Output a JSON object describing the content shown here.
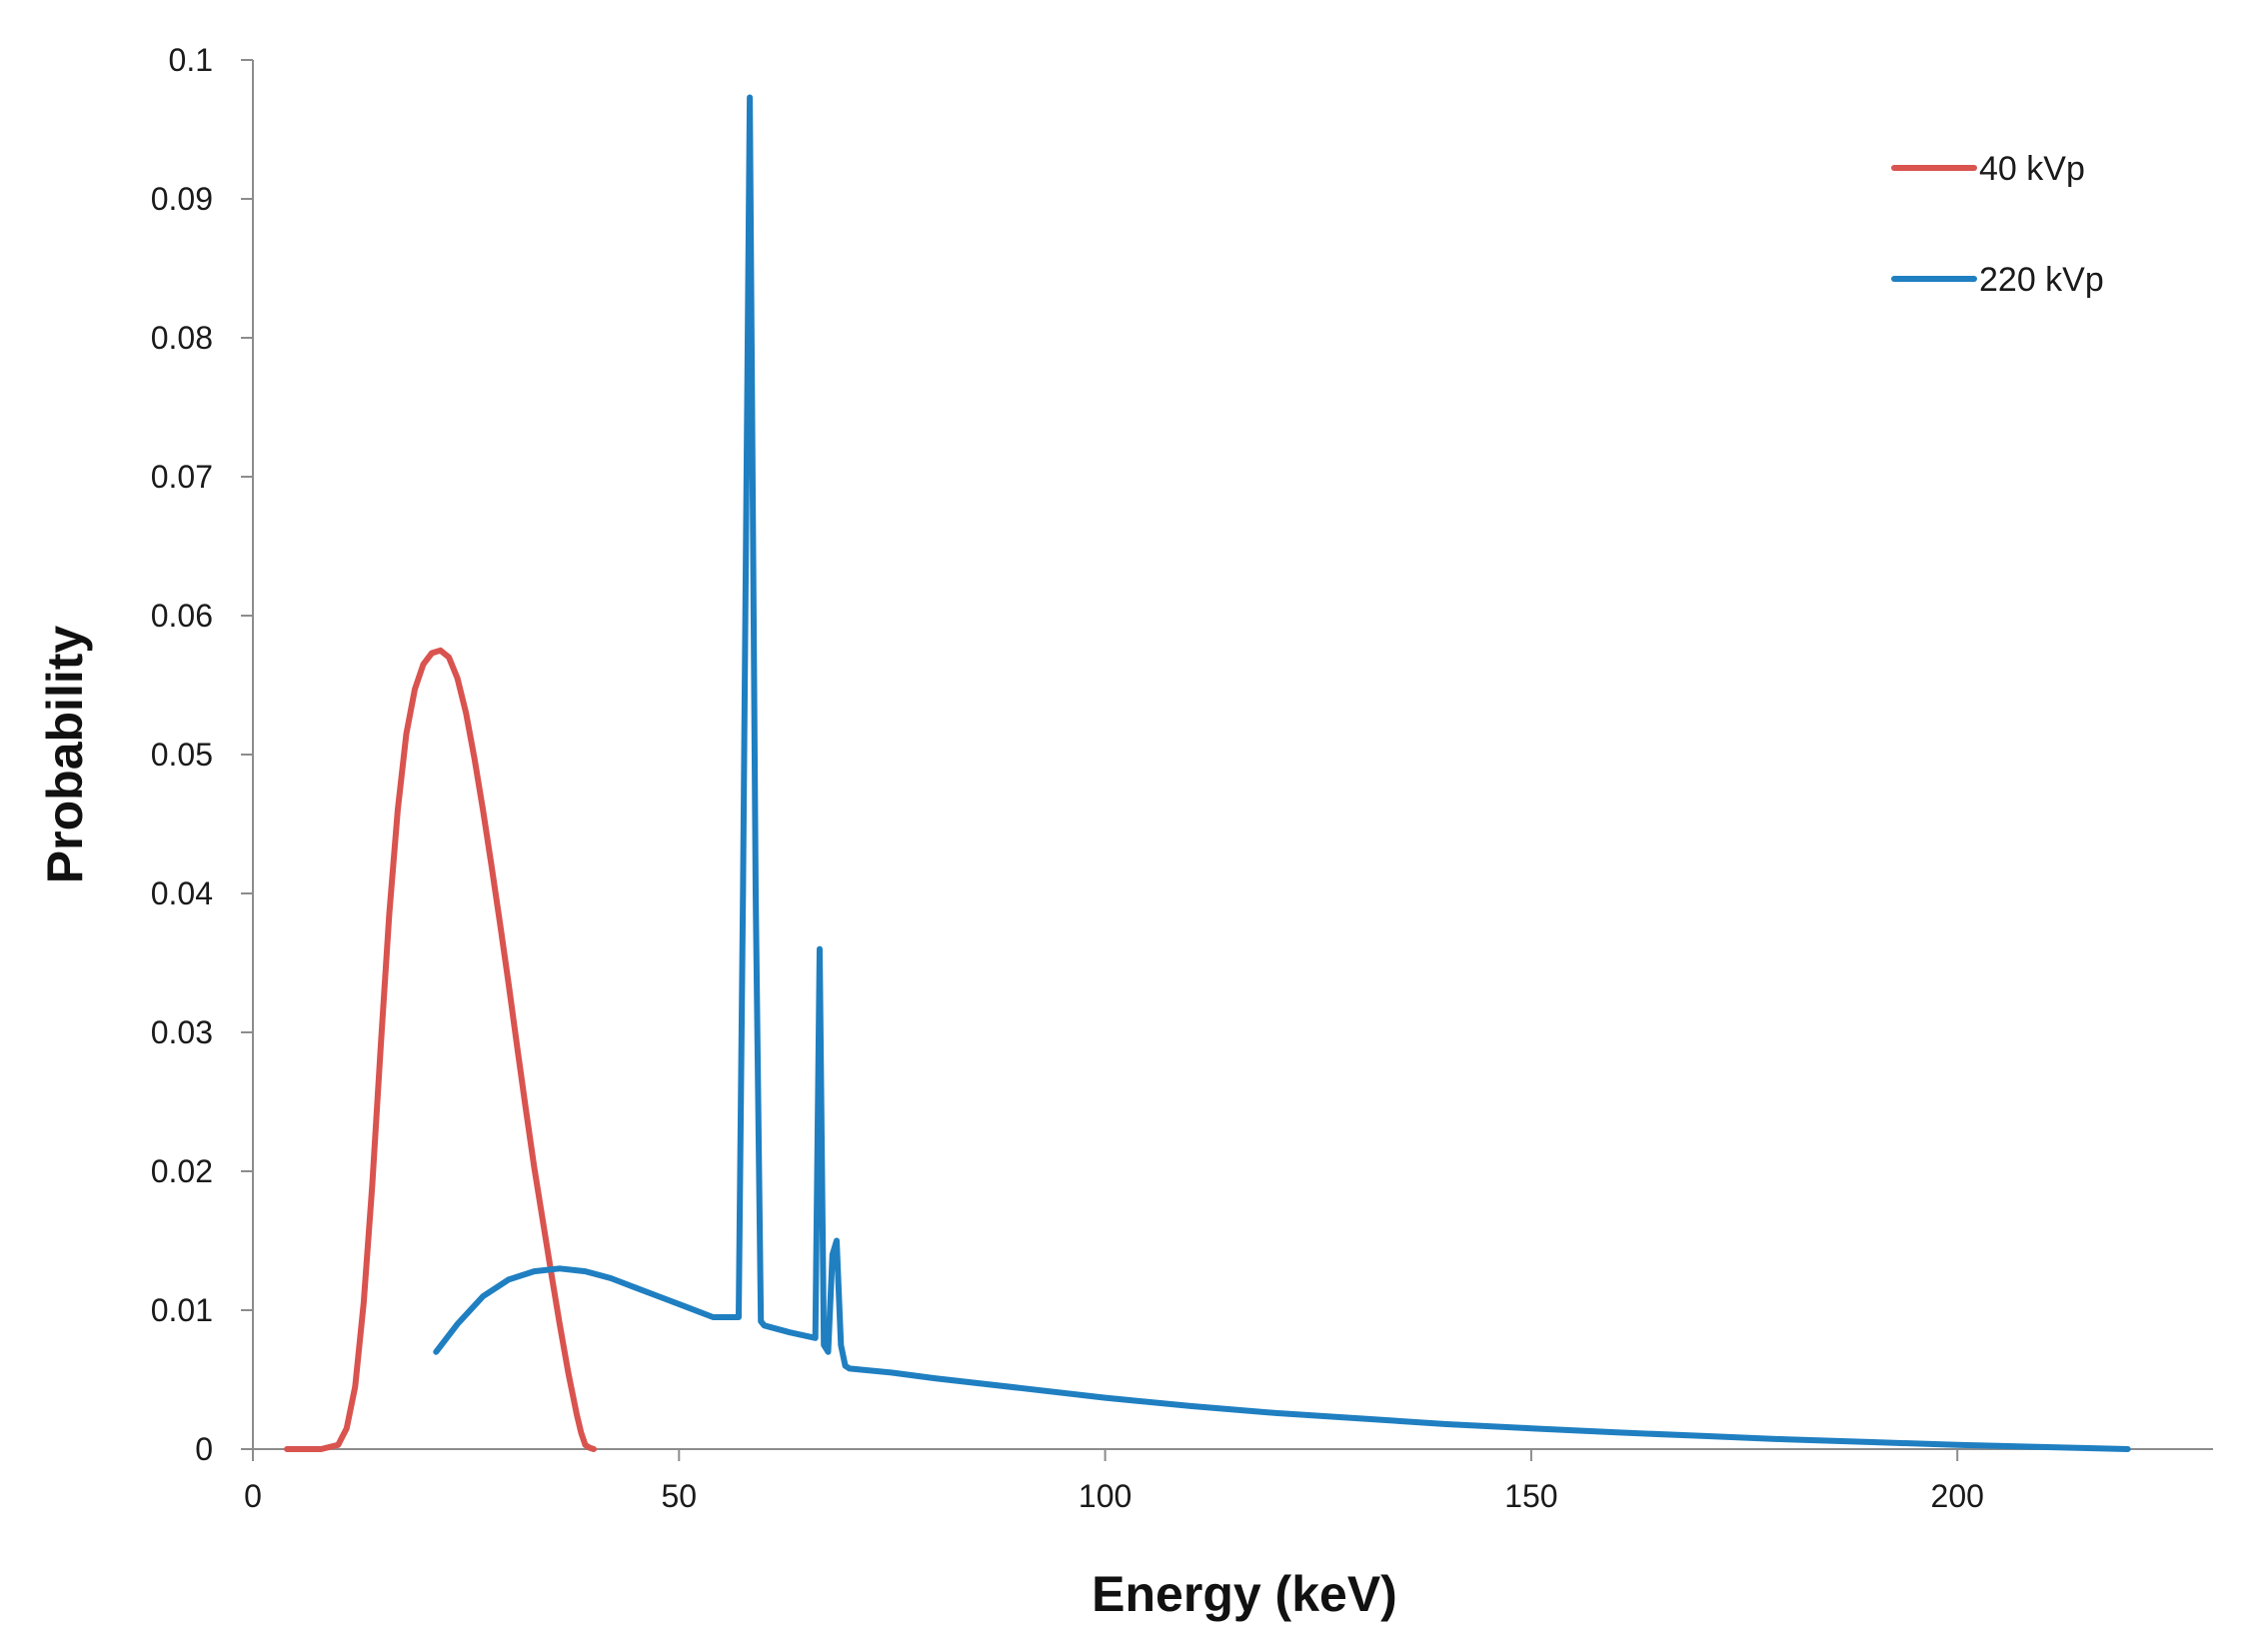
{
  "chart_data": {
    "type": "line",
    "title": "",
    "xlabel": "Energy (keV)",
    "ylabel": "Probability",
    "xlim": [
      0,
      230
    ],
    "ylim": [
      0,
      0.1
    ],
    "x_ticks": [
      0,
      50,
      100,
      150,
      200
    ],
    "x_tick_labels": [
      "0",
      "50",
      "100",
      "150",
      "200"
    ],
    "y_ticks": [
      0,
      0.01,
      0.02,
      0.03,
      0.04,
      0.05,
      0.06,
      0.07,
      0.08,
      0.09,
      0.1
    ],
    "y_tick_labels": [
      "0",
      "0.01",
      "0.02",
      "0.03",
      "0.04",
      "0.05",
      "0.06",
      "0.07",
      "0.08",
      "0.09",
      "0.1"
    ],
    "grid": false,
    "legend_position": "top-right",
    "series": [
      {
        "name": "40 kVp",
        "color": "#d9534f",
        "x": [
          4,
          8,
          10,
          11,
          12,
          13,
          14,
          15,
          16,
          17,
          18,
          19,
          20,
          21,
          22,
          23,
          24,
          25,
          26,
          27,
          28,
          29,
          30,
          31,
          32,
          33,
          34,
          35,
          36,
          37,
          38,
          38.5,
          39,
          39.5,
          40
        ],
        "y": [
          0,
          0,
          0.0003,
          0.0015,
          0.0045,
          0.0105,
          0.019,
          0.029,
          0.0385,
          0.046,
          0.0515,
          0.0547,
          0.0565,
          0.0573,
          0.0575,
          0.057,
          0.0555,
          0.053,
          0.0497,
          0.046,
          0.042,
          0.0378,
          0.0335,
          0.029,
          0.0246,
          0.0203,
          0.0165,
          0.0127,
          0.009,
          0.0055,
          0.0025,
          0.0012,
          0.0003,
          0.0001,
          0
        ]
      },
      {
        "name": "220 kVp",
        "color": "#1f7fc1",
        "x": [
          21.5,
          24,
          27,
          30,
          33,
          36,
          39,
          42,
          45,
          48,
          51,
          54,
          57,
          57.5,
          58.3,
          59,
          59.6,
          60,
          63,
          66,
          66.5,
          67,
          67.5,
          68,
          68.5,
          69,
          69.5,
          70,
          75,
          80,
          90,
          100,
          110,
          120,
          130,
          140,
          150,
          160,
          170,
          180,
          190,
          200,
          210,
          220
        ],
        "y": [
          0.007,
          0.009,
          0.011,
          0.0122,
          0.0128,
          0.013,
          0.0128,
          0.0123,
          0.0116,
          0.0109,
          0.0102,
          0.0095,
          0.0095,
          0.04,
          0.0973,
          0.04,
          0.0092,
          0.0089,
          0.0084,
          0.008,
          0.036,
          0.0075,
          0.007,
          0.014,
          0.015,
          0.0075,
          0.006,
          0.0058,
          0.0055,
          0.0051,
          0.0044,
          0.0037,
          0.0031,
          0.0026,
          0.0022,
          0.0018,
          0.0015,
          0.0012,
          0.00095,
          0.0007,
          0.0005,
          0.0003,
          0.00015,
          0
        ]
      }
    ]
  }
}
